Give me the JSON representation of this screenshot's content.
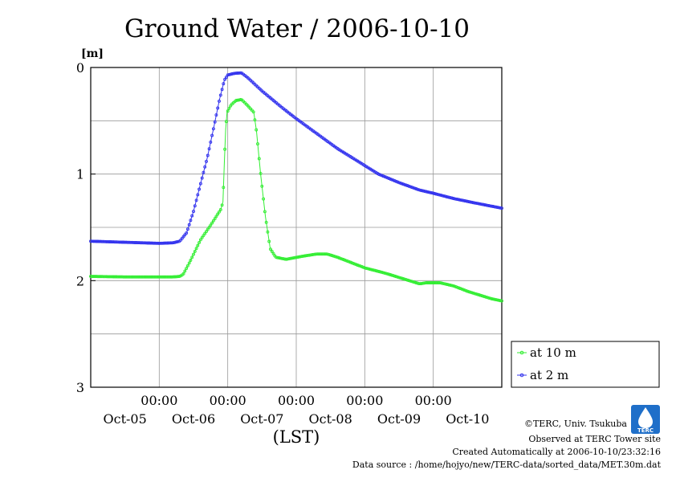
{
  "chart_data": {
    "type": "line",
    "title": "Ground Water / 2006-10-10",
    "ylabel": "[m]",
    "xlabel": "(LST)",
    "y_reversed": true,
    "ylim": [
      0,
      3
    ],
    "yticks": [
      "0",
      "1",
      "2",
      "3"
    ],
    "xlim": [
      0,
      6
    ],
    "x_tick_time_label": "00:00",
    "x_day_labels": [
      "Oct-05",
      "Oct-06",
      "Oct-07",
      "Oct-08",
      "Oct-09",
      "Oct-10"
    ],
    "grid": true,
    "legend_position": "right",
    "series": [
      {
        "name": "at 10 m",
        "color": "#33ee33",
        "points": [
          [
            0,
            1.96
          ],
          [
            0.5,
            1.965
          ],
          [
            1.0,
            1.965
          ],
          [
            1.2,
            1.965
          ],
          [
            1.3,
            1.96
          ],
          [
            1.35,
            1.94
          ],
          [
            1.45,
            1.82
          ],
          [
            1.6,
            1.62
          ],
          [
            1.75,
            1.48
          ],
          [
            1.9,
            1.33
          ],
          [
            1.93,
            1.26
          ],
          [
            1.95,
            0.9
          ],
          [
            1.97,
            0.58
          ],
          [
            1.99,
            0.42
          ],
          [
            2.05,
            0.35
          ],
          [
            2.12,
            0.31
          ],
          [
            2.2,
            0.3
          ],
          [
            2.28,
            0.35
          ],
          [
            2.38,
            0.42
          ],
          [
            2.42,
            0.6
          ],
          [
            2.48,
            1.0
          ],
          [
            2.55,
            1.4
          ],
          [
            2.62,
            1.7
          ],
          [
            2.7,
            1.78
          ],
          [
            2.85,
            1.8
          ],
          [
            3.1,
            1.77
          ],
          [
            3.3,
            1.75
          ],
          [
            3.45,
            1.75
          ],
          [
            3.6,
            1.78
          ],
          [
            3.8,
            1.83
          ],
          [
            4.0,
            1.88
          ],
          [
            4.3,
            1.93
          ],
          [
            4.5,
            1.97
          ],
          [
            4.7,
            2.01
          ],
          [
            4.8,
            2.03
          ],
          [
            4.9,
            2.02
          ],
          [
            5.1,
            2.02
          ],
          [
            5.3,
            2.05
          ],
          [
            5.5,
            2.1
          ],
          [
            5.7,
            2.14
          ],
          [
            5.85,
            2.17
          ],
          [
            6.0,
            2.19
          ]
        ]
      },
      {
        "name": "at 2 m",
        "color": "#3333ee",
        "points": [
          [
            0,
            1.63
          ],
          [
            0.5,
            1.64
          ],
          [
            1.0,
            1.65
          ],
          [
            1.2,
            1.645
          ],
          [
            1.3,
            1.63
          ],
          [
            1.4,
            1.55
          ],
          [
            1.5,
            1.35
          ],
          [
            1.6,
            1.1
          ],
          [
            1.7,
            0.85
          ],
          [
            1.8,
            0.55
          ],
          [
            1.88,
            0.3
          ],
          [
            1.95,
            0.12
          ],
          [
            2.0,
            0.07
          ],
          [
            2.1,
            0.055
          ],
          [
            2.2,
            0.05
          ],
          [
            2.3,
            0.1
          ],
          [
            2.5,
            0.22
          ],
          [
            2.8,
            0.38
          ],
          [
            3.0,
            0.48
          ],
          [
            3.3,
            0.62
          ],
          [
            3.6,
            0.76
          ],
          [
            3.9,
            0.88
          ],
          [
            4.2,
            1.0
          ],
          [
            4.5,
            1.08
          ],
          [
            4.8,
            1.15
          ],
          [
            5.0,
            1.18
          ],
          [
            5.3,
            1.23
          ],
          [
            5.6,
            1.27
          ],
          [
            6.0,
            1.32
          ]
        ]
      }
    ]
  },
  "footer": {
    "copyright": "©TERC, Univ. Tsukuba",
    "observed": "Observed at TERC Tower site",
    "created": "Created Automatically at 2006-10-10/23:32:16",
    "source": "Data source : /home/hojyo/new/TERC-data/sorted_data/MET.30m.dat"
  },
  "logo": {
    "text": "TERC"
  }
}
